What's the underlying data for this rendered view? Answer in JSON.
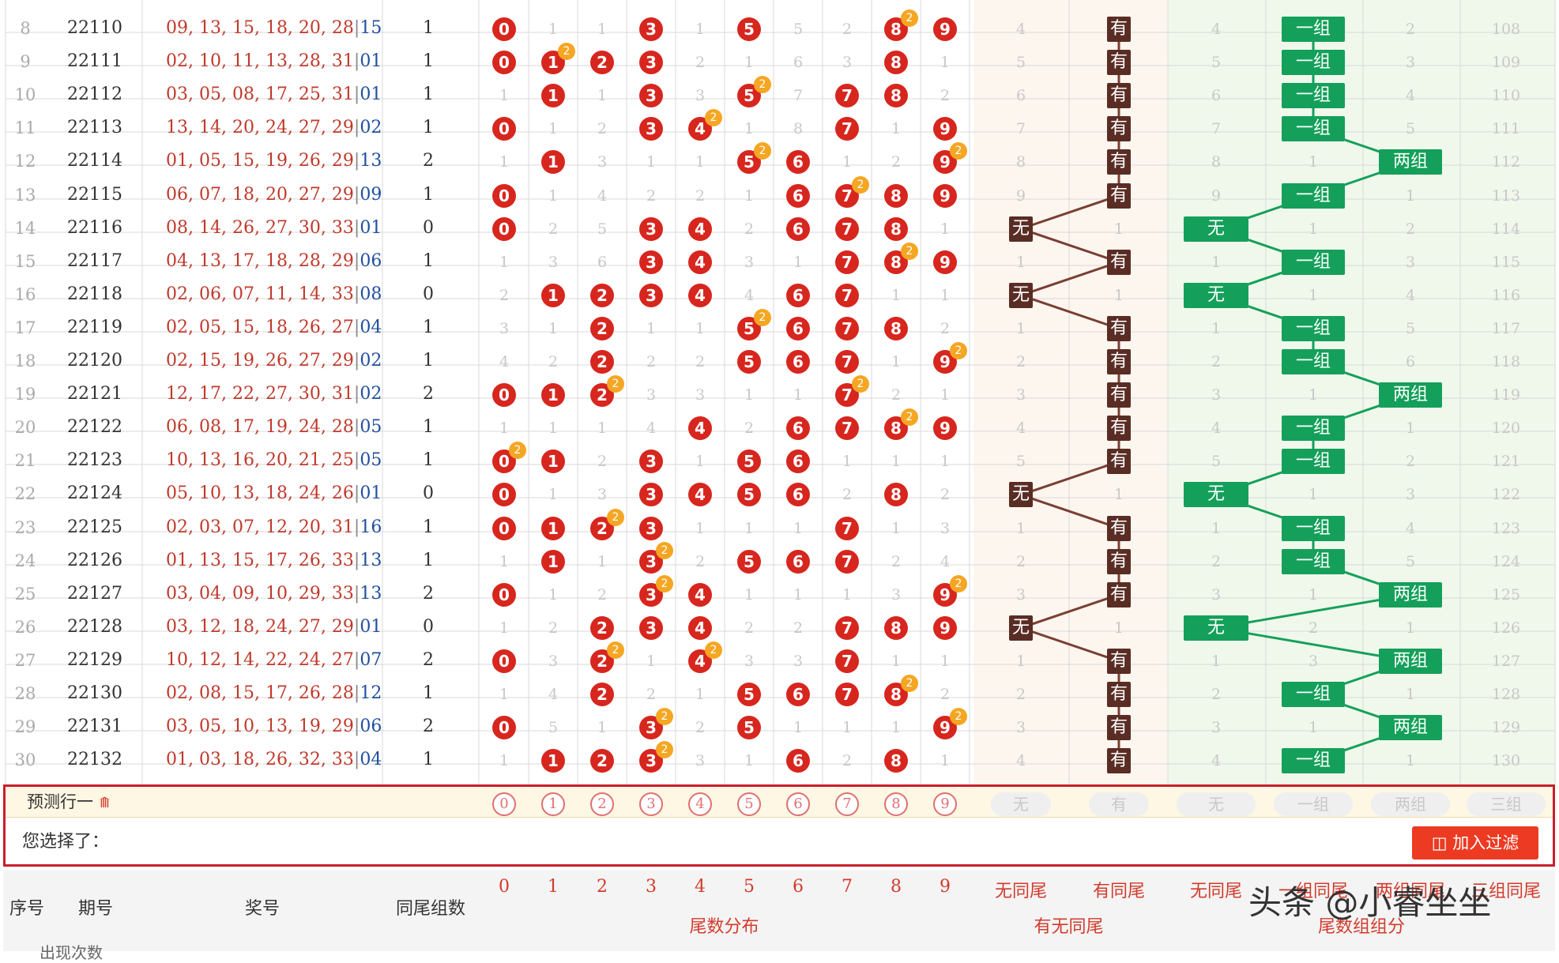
{
  "rows": [
    {
      "idx": "8",
      "issue": "22110",
      "nums": "09, 13, 15, 18, 20, 28",
      "blue": "15",
      "pairs": "1",
      "tails": [
        {
          "b": "0"
        },
        {
          "m": "1"
        },
        {
          "m": "1"
        },
        {
          "b": "3"
        },
        {
          "m": "1"
        },
        {
          "b": "5"
        },
        {
          "m": "5"
        },
        {
          "m": "2"
        },
        {
          "b": "8",
          "x": "2"
        },
        {
          "b": "9"
        }
      ],
      "same": {
        "none": "4",
        "has": "有"
      },
      "grp": {
        "none": "4",
        "one": "一组",
        "two": "2",
        "three": "108"
      }
    },
    {
      "idx": "9",
      "issue": "22111",
      "nums": "02, 10, 11, 13, 28, 31",
      "blue": "01",
      "pairs": "1",
      "tails": [
        {
          "b": "0"
        },
        {
          "b": "1",
          "x": "2"
        },
        {
          "b": "2"
        },
        {
          "b": "3"
        },
        {
          "m": "2"
        },
        {
          "m": "1"
        },
        {
          "m": "6"
        },
        {
          "m": "3"
        },
        {
          "b": "8"
        },
        {
          "m": "1"
        }
      ],
      "same": {
        "none": "5",
        "has": "有"
      },
      "grp": {
        "none": "5",
        "one": "一组",
        "two": "3",
        "three": "109"
      }
    },
    {
      "idx": "10",
      "issue": "22112",
      "nums": "03, 05, 08, 17, 25, 31",
      "blue": "01",
      "pairs": "1",
      "tails": [
        {
          "m": "1"
        },
        {
          "b": "1"
        },
        {
          "m": "1"
        },
        {
          "b": "3"
        },
        {
          "m": "3"
        },
        {
          "b": "5",
          "x": "2"
        },
        {
          "m": "7"
        },
        {
          "b": "7"
        },
        {
          "b": "8"
        },
        {
          "m": "2"
        }
      ],
      "same": {
        "none": "6",
        "has": "有"
      },
      "grp": {
        "none": "6",
        "one": "一组",
        "two": "4",
        "three": "110"
      }
    },
    {
      "idx": "11",
      "issue": "22113",
      "nums": "13, 14, 20, 24, 27, 29",
      "blue": "02",
      "pairs": "1",
      "tails": [
        {
          "b": "0"
        },
        {
          "m": "1"
        },
        {
          "m": "2"
        },
        {
          "b": "3"
        },
        {
          "b": "4",
          "x": "2"
        },
        {
          "m": "1"
        },
        {
          "m": "8"
        },
        {
          "b": "7"
        },
        {
          "m": "1"
        },
        {
          "b": "9"
        }
      ],
      "same": {
        "none": "7",
        "has": "有"
      },
      "grp": {
        "none": "7",
        "one": "一组",
        "two": "5",
        "three": "111"
      }
    },
    {
      "idx": "12",
      "issue": "22114",
      "nums": "01, 05, 15, 19, 26, 29",
      "blue": "13",
      "pairs": "2",
      "tails": [
        {
          "m": "1"
        },
        {
          "b": "1"
        },
        {
          "m": "3"
        },
        {
          "m": "1"
        },
        {
          "m": "1"
        },
        {
          "b": "5",
          "x": "2"
        },
        {
          "b": "6"
        },
        {
          "m": "1"
        },
        {
          "m": "2"
        },
        {
          "b": "9",
          "x": "2"
        }
      ],
      "same": {
        "none": "8",
        "has": "有"
      },
      "grp": {
        "none": "8",
        "one": "1",
        "two": "两组",
        "three": "112"
      }
    },
    {
      "idx": "13",
      "issue": "22115",
      "nums": "06, 07, 18, 20, 27, 29",
      "blue": "09",
      "pairs": "1",
      "tails": [
        {
          "b": "0"
        },
        {
          "m": "1"
        },
        {
          "m": "4"
        },
        {
          "m": "2"
        },
        {
          "m": "2"
        },
        {
          "m": "1"
        },
        {
          "b": "6"
        },
        {
          "b": "7",
          "x": "2"
        },
        {
          "b": "8"
        },
        {
          "b": "9"
        }
      ],
      "same": {
        "none": "9",
        "has": "有"
      },
      "grp": {
        "none": "9",
        "one": "一组",
        "two": "1",
        "three": "113"
      }
    },
    {
      "idx": "14",
      "issue": "22116",
      "nums": "08, 14, 26, 27, 30, 33",
      "blue": "01",
      "pairs": "0",
      "tails": [
        {
          "b": "0"
        },
        {
          "m": "2"
        },
        {
          "m": "5"
        },
        {
          "b": "3"
        },
        {
          "b": "4"
        },
        {
          "m": "2"
        },
        {
          "b": "6"
        },
        {
          "b": "7"
        },
        {
          "b": "8"
        },
        {
          "m": "1"
        }
      ],
      "same": {
        "none": "无",
        "has": "1"
      },
      "grp": {
        "none": "无",
        "one": "1",
        "two": "2",
        "three": "114"
      }
    },
    {
      "idx": "15",
      "issue": "22117",
      "nums": "04, 13, 17, 18, 28, 29",
      "blue": "06",
      "pairs": "1",
      "tails": [
        {
          "m": "1"
        },
        {
          "m": "3"
        },
        {
          "m": "6"
        },
        {
          "b": "3"
        },
        {
          "b": "4"
        },
        {
          "m": "3"
        },
        {
          "m": "1"
        },
        {
          "b": "7"
        },
        {
          "b": "8",
          "x": "2"
        },
        {
          "b": "9"
        }
      ],
      "same": {
        "none": "1",
        "has": "有"
      },
      "grp": {
        "none": "1",
        "one": "一组",
        "two": "3",
        "three": "115"
      }
    },
    {
      "idx": "16",
      "issue": "22118",
      "nums": "02, 06, 07, 11, 14, 33",
      "blue": "08",
      "pairs": "0",
      "tails": [
        {
          "m": "2"
        },
        {
          "b": "1"
        },
        {
          "b": "2"
        },
        {
          "b": "3"
        },
        {
          "b": "4"
        },
        {
          "m": "4"
        },
        {
          "b": "6"
        },
        {
          "b": "7"
        },
        {
          "m": "1"
        },
        {
          "m": "1"
        }
      ],
      "same": {
        "none": "无",
        "has": "1"
      },
      "grp": {
        "none": "无",
        "one": "1",
        "two": "4",
        "three": "116"
      }
    },
    {
      "idx": "17",
      "issue": "22119",
      "nums": "02, 05, 15, 18, 26, 27",
      "blue": "04",
      "pairs": "1",
      "tails": [
        {
          "m": "3"
        },
        {
          "m": "1"
        },
        {
          "b": "2"
        },
        {
          "m": "1"
        },
        {
          "m": "1"
        },
        {
          "b": "5",
          "x": "2"
        },
        {
          "b": "6"
        },
        {
          "b": "7"
        },
        {
          "b": "8"
        },
        {
          "m": "2"
        }
      ],
      "same": {
        "none": "1",
        "has": "有"
      },
      "grp": {
        "none": "1",
        "one": "一组",
        "two": "5",
        "three": "117"
      }
    },
    {
      "idx": "18",
      "issue": "22120",
      "nums": "02, 15, 19, 26, 27, 29",
      "blue": "02",
      "pairs": "1",
      "tails": [
        {
          "m": "4"
        },
        {
          "m": "2"
        },
        {
          "b": "2"
        },
        {
          "m": "2"
        },
        {
          "m": "2"
        },
        {
          "b": "5"
        },
        {
          "b": "6"
        },
        {
          "b": "7"
        },
        {
          "m": "1"
        },
        {
          "b": "9",
          "x": "2"
        }
      ],
      "same": {
        "none": "2",
        "has": "有"
      },
      "grp": {
        "none": "2",
        "one": "一组",
        "two": "6",
        "three": "118"
      }
    },
    {
      "idx": "19",
      "issue": "22121",
      "nums": "12, 17, 22, 27, 30, 31",
      "blue": "02",
      "pairs": "2",
      "tails": [
        {
          "b": "0"
        },
        {
          "b": "1"
        },
        {
          "b": "2",
          "x": "2"
        },
        {
          "m": "3"
        },
        {
          "m": "3"
        },
        {
          "m": "1"
        },
        {
          "m": "1"
        },
        {
          "b": "7",
          "x": "2"
        },
        {
          "m": "2"
        },
        {
          "m": "1"
        }
      ],
      "same": {
        "none": "3",
        "has": "有"
      },
      "grp": {
        "none": "3",
        "one": "1",
        "two": "两组",
        "three": "119"
      }
    },
    {
      "idx": "20",
      "issue": "22122",
      "nums": "06, 08, 17, 19, 24, 28",
      "blue": "05",
      "pairs": "1",
      "tails": [
        {
          "m": "1"
        },
        {
          "m": "1"
        },
        {
          "m": "1"
        },
        {
          "m": "4"
        },
        {
          "b": "4"
        },
        {
          "m": "2"
        },
        {
          "b": "6"
        },
        {
          "b": "7"
        },
        {
          "b": "8",
          "x": "2"
        },
        {
          "b": "9"
        }
      ],
      "same": {
        "none": "4",
        "has": "有"
      },
      "grp": {
        "none": "4",
        "one": "一组",
        "two": "1",
        "three": "120"
      }
    },
    {
      "idx": "21",
      "issue": "22123",
      "nums": "10, 13, 16, 20, 21, 25",
      "blue": "05",
      "pairs": "1",
      "tails": [
        {
          "b": "0",
          "x": "2"
        },
        {
          "b": "1"
        },
        {
          "m": "2"
        },
        {
          "b": "3"
        },
        {
          "m": "1"
        },
        {
          "b": "5"
        },
        {
          "b": "6"
        },
        {
          "m": "1"
        },
        {
          "m": "1"
        },
        {
          "m": "1"
        }
      ],
      "same": {
        "none": "5",
        "has": "有"
      },
      "grp": {
        "none": "5",
        "one": "一组",
        "two": "2",
        "three": "121"
      }
    },
    {
      "idx": "22",
      "issue": "22124",
      "nums": "05, 10, 13, 18, 24, 26",
      "blue": "01",
      "pairs": "0",
      "tails": [
        {
          "b": "0"
        },
        {
          "m": "1"
        },
        {
          "m": "3"
        },
        {
          "b": "3"
        },
        {
          "b": "4"
        },
        {
          "b": "5"
        },
        {
          "b": "6"
        },
        {
          "m": "2"
        },
        {
          "b": "8"
        },
        {
          "m": "2"
        }
      ],
      "same": {
        "none": "无",
        "has": "1"
      },
      "grp": {
        "none": "无",
        "one": "1",
        "two": "3",
        "three": "122"
      }
    },
    {
      "idx": "23",
      "issue": "22125",
      "nums": "02, 03, 07, 12, 20, 31",
      "blue": "16",
      "pairs": "1",
      "tails": [
        {
          "b": "0"
        },
        {
          "b": "1"
        },
        {
          "b": "2",
          "x": "2"
        },
        {
          "b": "3"
        },
        {
          "m": "1"
        },
        {
          "m": "1"
        },
        {
          "m": "1"
        },
        {
          "b": "7"
        },
        {
          "m": "1"
        },
        {
          "m": "3"
        }
      ],
      "same": {
        "none": "1",
        "has": "有"
      },
      "grp": {
        "none": "1",
        "one": "一组",
        "two": "4",
        "three": "123"
      }
    },
    {
      "idx": "24",
      "issue": "22126",
      "nums": "01, 13, 15, 17, 26, 33",
      "blue": "13",
      "pairs": "1",
      "tails": [
        {
          "m": "1"
        },
        {
          "b": "1"
        },
        {
          "m": "1"
        },
        {
          "b": "3",
          "x": "2"
        },
        {
          "m": "2"
        },
        {
          "b": "5"
        },
        {
          "b": "6"
        },
        {
          "b": "7"
        },
        {
          "m": "2"
        },
        {
          "m": "4"
        }
      ],
      "same": {
        "none": "2",
        "has": "有"
      },
      "grp": {
        "none": "2",
        "one": "一组",
        "two": "5",
        "three": "124"
      }
    },
    {
      "idx": "25",
      "issue": "22127",
      "nums": "03, 04, 09, 10, 29, 33",
      "blue": "13",
      "pairs": "2",
      "tails": [
        {
          "b": "0"
        },
        {
          "m": "1"
        },
        {
          "m": "2"
        },
        {
          "b": "3",
          "x": "2"
        },
        {
          "b": "4"
        },
        {
          "m": "1"
        },
        {
          "m": "1"
        },
        {
          "m": "1"
        },
        {
          "m": "3"
        },
        {
          "b": "9",
          "x": "2"
        }
      ],
      "same": {
        "none": "3",
        "has": "有"
      },
      "grp": {
        "none": "3",
        "one": "1",
        "two": "两组",
        "three": "125"
      }
    },
    {
      "idx": "26",
      "issue": "22128",
      "nums": "03, 12, 18, 24, 27, 29",
      "blue": "01",
      "pairs": "0",
      "tails": [
        {
          "m": "1"
        },
        {
          "m": "2"
        },
        {
          "b": "2"
        },
        {
          "b": "3"
        },
        {
          "b": "4"
        },
        {
          "m": "2"
        },
        {
          "m": "2"
        },
        {
          "b": "7"
        },
        {
          "b": "8"
        },
        {
          "b": "9"
        }
      ],
      "same": {
        "none": "无",
        "has": "1"
      },
      "grp": {
        "none": "无",
        "one": "2",
        "two": "1",
        "three": "126"
      }
    },
    {
      "idx": "27",
      "issue": "22129",
      "nums": "10, 12, 14, 22, 24, 27",
      "blue": "07",
      "pairs": "2",
      "tails": [
        {
          "b": "0"
        },
        {
          "m": "3"
        },
        {
          "b": "2",
          "x": "2"
        },
        {
          "m": "1"
        },
        {
          "b": "4",
          "x": "2"
        },
        {
          "m": "3"
        },
        {
          "m": "3"
        },
        {
          "b": "7"
        },
        {
          "m": "1"
        },
        {
          "m": "1"
        }
      ],
      "same": {
        "none": "1",
        "has": "有"
      },
      "grp": {
        "none": "1",
        "one": "3",
        "two": "两组",
        "three": "127"
      }
    },
    {
      "idx": "28",
      "issue": "22130",
      "nums": "02, 08, 15, 17, 26, 28",
      "blue": "12",
      "pairs": "1",
      "tails": [
        {
          "m": "1"
        },
        {
          "m": "4"
        },
        {
          "b": "2"
        },
        {
          "m": "2"
        },
        {
          "m": "1"
        },
        {
          "b": "5"
        },
        {
          "b": "6"
        },
        {
          "b": "7"
        },
        {
          "b": "8",
          "x": "2"
        },
        {
          "m": "2"
        }
      ],
      "same": {
        "none": "2",
        "has": "有"
      },
      "grp": {
        "none": "2",
        "one": "一组",
        "two": "1",
        "three": "128"
      }
    },
    {
      "idx": "29",
      "issue": "22131",
      "nums": "03, 05, 10, 13, 19, 29",
      "blue": "06",
      "pairs": "2",
      "tails": [
        {
          "b": "0"
        },
        {
          "m": "5"
        },
        {
          "m": "1"
        },
        {
          "b": "3",
          "x": "2"
        },
        {
          "m": "2"
        },
        {
          "b": "5"
        },
        {
          "m": "1"
        },
        {
          "m": "1"
        },
        {
          "m": "1"
        },
        {
          "b": "9",
          "x": "2"
        }
      ],
      "same": {
        "none": "3",
        "has": "有"
      },
      "grp": {
        "none": "3",
        "one": "1",
        "two": "两组",
        "three": "129"
      }
    },
    {
      "idx": "30",
      "issue": "22132",
      "nums": "01, 03, 18, 26, 32, 33",
      "blue": "04",
      "pairs": "1",
      "tails": [
        {
          "m": "1"
        },
        {
          "b": "1"
        },
        {
          "b": "2"
        },
        {
          "b": "3",
          "x": "2"
        },
        {
          "m": "3"
        },
        {
          "m": "1"
        },
        {
          "b": "6"
        },
        {
          "m": "2"
        },
        {
          "b": "8"
        },
        {
          "m": "1"
        }
      ],
      "same": {
        "none": "4",
        "has": "有"
      },
      "grp": {
        "none": "4",
        "one": "一组",
        "two": "1",
        "three": "130"
      }
    }
  ],
  "predict": {
    "label": "预测行一",
    "digits": [
      "0",
      "1",
      "2",
      "3",
      "4",
      "5",
      "6",
      "7",
      "8",
      "9"
    ],
    "same": [
      "无",
      "有"
    ],
    "grp": [
      "无",
      "一组",
      "两组",
      "三组"
    ]
  },
  "selection": {
    "label": "您选择了：",
    "button": "加入过滤"
  },
  "header": {
    "seq": "序号",
    "issue": "期号",
    "nums": "奖号",
    "pairs": "同尾组数",
    "digits": [
      "0",
      "1",
      "2",
      "3",
      "4",
      "5",
      "6",
      "7",
      "8",
      "9"
    ],
    "tail_dist": "尾数分布",
    "same_cols": [
      "无同尾",
      "有同尾"
    ],
    "same_title": "有无同尾",
    "grp_cols": [
      "无同尾",
      "一组同尾",
      "两组同尾",
      "三组同尾"
    ],
    "grp_title": "尾数组组分",
    "count_label": "出现次数"
  },
  "watermark": "头条 @小睿坐坐",
  "colors": {
    "ball": "#d7261e",
    "badge": "#f5a623",
    "brown": "#5a2d24",
    "green": "#14a05a",
    "accent": "#d23b2c"
  }
}
